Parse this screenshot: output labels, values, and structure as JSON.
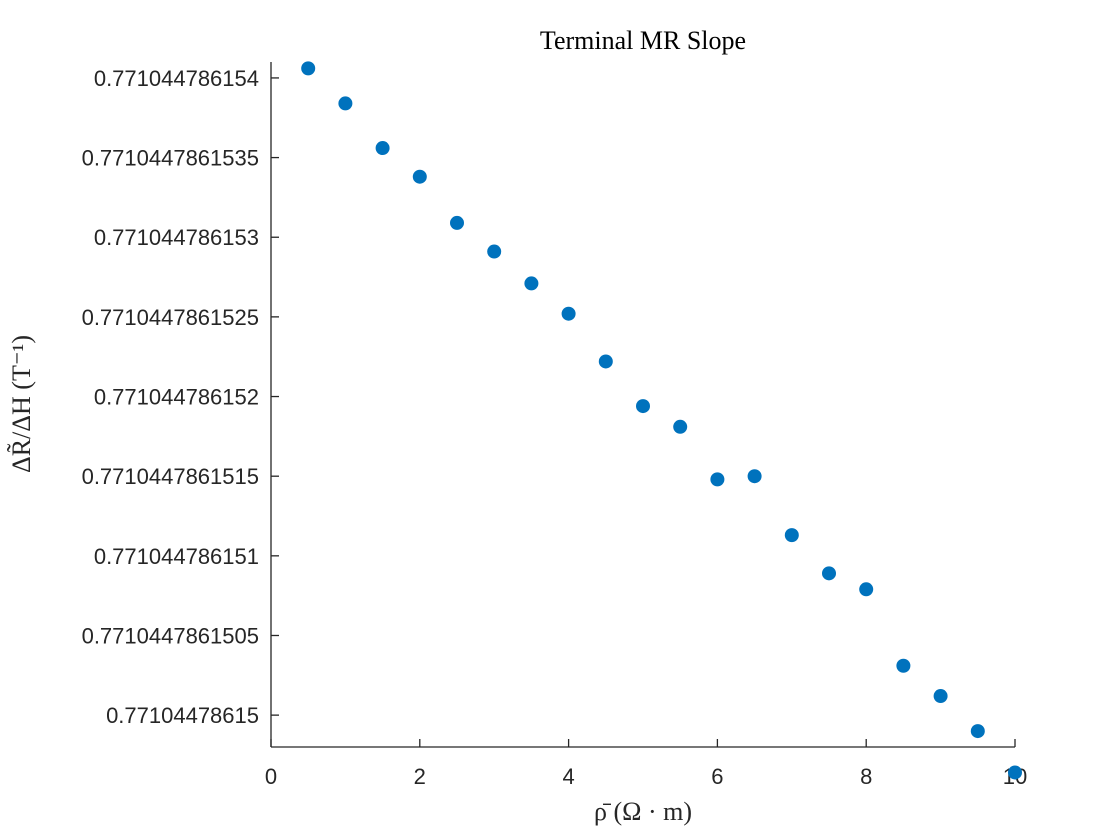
{
  "chart_data": {
    "type": "scatter",
    "title": "Terminal MR Slope",
    "xlabel": "ρ̄ (Ω · m)",
    "ylabel": "ΔR̃/ΔH (T⁻¹)",
    "xlim": [
      0,
      10
    ],
    "ylim": [
      0.7710447861498,
      0.7710447861541
    ],
    "x_ticks": [
      0,
      2,
      4,
      6,
      8,
      10
    ],
    "x_tick_labels": [
      "0",
      "2",
      "4",
      "6",
      "8",
      "10"
    ],
    "y_ticks": [
      0.771044786154,
      0.7710447861535,
      0.771044786153,
      0.7710447861525,
      0.771044786152,
      0.7710447861515,
      0.771044786151,
      0.7710447861505,
      0.77104478615
    ],
    "y_tick_labels": [
      "0.771044786154",
      "0.7710447861535",
      "0.771044786153",
      "0.7710447861525",
      "0.771044786152",
      "0.7710447861515",
      "0.771044786151",
      "0.7710447861505",
      "0.77104478615"
    ],
    "grid": false,
    "marker_color": "#0072BD",
    "series": [
      {
        "x": [
          0.5,
          1.0,
          1.5,
          2.0,
          2.5,
          3.0,
          3.5,
          4.0,
          4.5,
          5.0,
          5.5,
          6.0,
          6.5,
          7.0,
          7.5,
          8.0,
          8.5,
          9.0,
          9.5,
          10.0
        ],
        "y": [
          0.77104478615406,
          0.77104478615384,
          0.77104478615356,
          0.77104478615338,
          0.77104478615309,
          0.77104478615291,
          0.77104478615271,
          0.77104478615252,
          0.77104478615222,
          0.77104478615194,
          0.77104478615181,
          0.77104478615148,
          0.7710447861515,
          0.77104478615113,
          0.77104478615089,
          0.77104478615079,
          0.77104478615031,
          0.77104478615012,
          0.7710447861499,
          0.77104478614964
        ]
      }
    ]
  }
}
